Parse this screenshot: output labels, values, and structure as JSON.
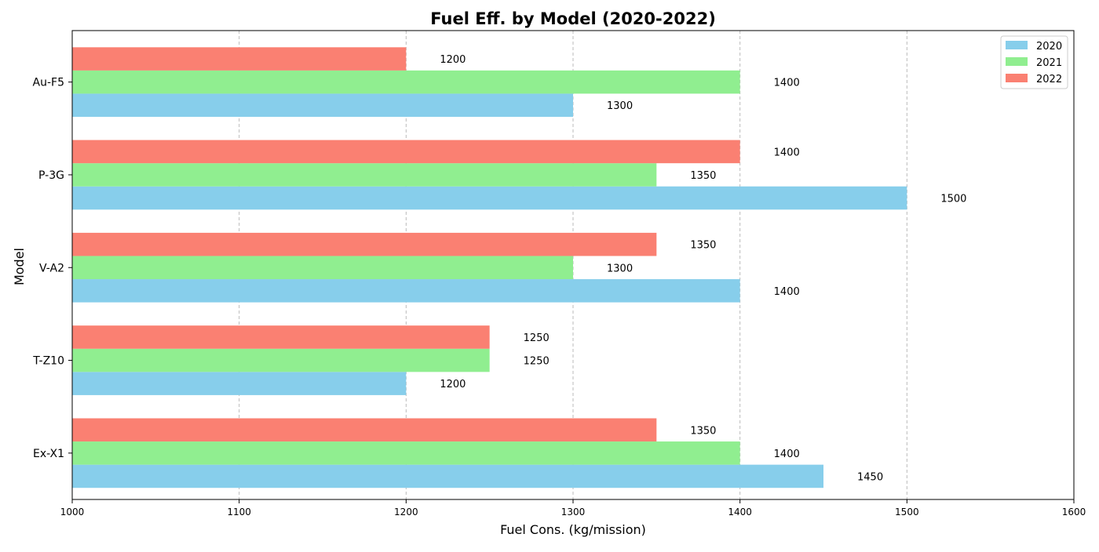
{
  "chart_data": {
    "type": "bar",
    "orientation": "horizontal",
    "title": "Fuel Eff. by Model (2020-2022)",
    "xlabel": "Fuel Cons. (kg/mission)",
    "ylabel": "Model",
    "xlim": [
      1000,
      1600
    ],
    "xticks": [
      1000,
      1100,
      1200,
      1300,
      1400,
      1500,
      1600
    ],
    "grid": "x-dashed",
    "legend_position": "top-right",
    "categories": [
      "Ex-X1",
      "T-Z10",
      "V-A2",
      "P-3G",
      "Au-F5"
    ],
    "series": [
      {
        "name": "2020",
        "color": "#87ceeb",
        "values": [
          1450,
          1200,
          1400,
          1500,
          1300
        ]
      },
      {
        "name": "2021",
        "color": "#90ee90",
        "values": [
          1400,
          1250,
          1300,
          1350,
          1400
        ]
      },
      {
        "name": "2022",
        "color": "#fa8072",
        "values": [
          1350,
          1250,
          1350,
          1400,
          1200
        ]
      }
    ]
  }
}
